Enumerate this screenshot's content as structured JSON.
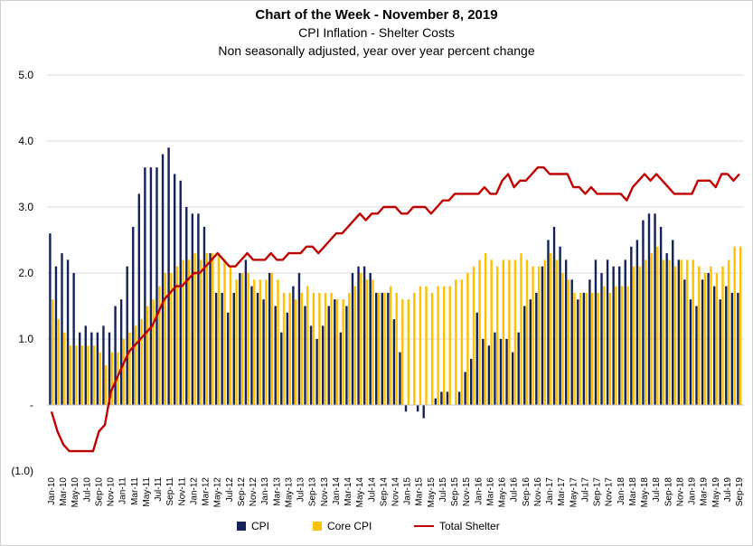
{
  "chart_data": {
    "type": "bar",
    "title": "Chart of the Week - November 8, 2019",
    "subtitle": [
      "CPI Inflation - Shelter Costs",
      "Non seasonally adjusted, year over year percent change"
    ],
    "xlabel": "",
    "ylabel": "",
    "ylim": [
      -1,
      5
    ],
    "y_ticks": [
      5,
      4,
      3,
      2,
      1,
      0,
      -1
    ],
    "y_tick_labels": [
      "5.0",
      "4.0",
      "3.0",
      "2.0",
      "1.0",
      "-",
      "(1.0)"
    ],
    "grid": true,
    "legend_position": "bottom",
    "categories": [
      "Jan-10",
      "Feb-10",
      "Mar-10",
      "Apr-10",
      "May-10",
      "Jun-10",
      "Jul-10",
      "Aug-10",
      "Sep-10",
      "Oct-10",
      "Nov-10",
      "Dec-10",
      "Jan-11",
      "Feb-11",
      "Mar-11",
      "Apr-11",
      "May-11",
      "Jun-11",
      "Jul-11",
      "Aug-11",
      "Sep-11",
      "Oct-11",
      "Nov-11",
      "Dec-11",
      "Jan-12",
      "Feb-12",
      "Mar-12",
      "Apr-12",
      "May-12",
      "Jun-12",
      "Jul-12",
      "Aug-12",
      "Sep-12",
      "Oct-12",
      "Nov-12",
      "Dec-12",
      "Jan-13",
      "Feb-13",
      "Mar-13",
      "Apr-13",
      "May-13",
      "Jun-13",
      "Jul-13",
      "Aug-13",
      "Sep-13",
      "Oct-13",
      "Nov-13",
      "Dec-13",
      "Jan-14",
      "Feb-14",
      "Mar-14",
      "Apr-14",
      "May-14",
      "Jun-14",
      "Jul-14",
      "Aug-14",
      "Sep-14",
      "Oct-14",
      "Nov-14",
      "Dec-14",
      "Jan-15",
      "Feb-15",
      "Mar-15",
      "Apr-15",
      "May-15",
      "Jun-15",
      "Jul-15",
      "Aug-15",
      "Sep-15",
      "Oct-15",
      "Nov-15",
      "Dec-15",
      "Jan-16",
      "Feb-16",
      "Mar-16",
      "Apr-16",
      "May-16",
      "Jun-16",
      "Jul-16",
      "Aug-16",
      "Sep-16",
      "Oct-16",
      "Nov-16",
      "Dec-16",
      "Jan-17",
      "Feb-17",
      "Mar-17",
      "Apr-17",
      "May-17",
      "Jun-17",
      "Jul-17",
      "Aug-17",
      "Sep-17",
      "Oct-17",
      "Nov-17",
      "Dec-17",
      "Jan-18",
      "Feb-18",
      "Mar-18",
      "Apr-18",
      "May-18",
      "Jun-18",
      "Jul-18",
      "Aug-18",
      "Sep-18",
      "Oct-18",
      "Nov-18",
      "Dec-18",
      "Jan-19",
      "Feb-19",
      "Mar-19",
      "Apr-19",
      "May-19",
      "Jun-19",
      "Jul-19",
      "Aug-19",
      "Sep-19"
    ],
    "series": [
      {
        "name": "CPI",
        "type": "bar",
        "color": "#14235a",
        "values": [
          2.6,
          2.1,
          2.3,
          2.2,
          2.0,
          1.1,
          1.2,
          1.1,
          1.1,
          1.2,
          1.1,
          1.5,
          1.6,
          2.1,
          2.7,
          3.2,
          3.6,
          3.6,
          3.6,
          3.8,
          3.9,
          3.5,
          3.4,
          3.0,
          2.9,
          2.9,
          2.7,
          2.3,
          1.7,
          1.7,
          1.4,
          1.7,
          2.0,
          2.2,
          1.8,
          1.7,
          1.6,
          2.0,
          1.5,
          1.1,
          1.4,
          1.8,
          2.0,
          1.5,
          1.2,
          1.0,
          1.2,
          1.5,
          1.6,
          1.1,
          1.5,
          2.0,
          2.1,
          2.1,
          2.0,
          1.7,
          1.7,
          1.7,
          1.3,
          0.8,
          -0.1,
          0.0,
          -0.1,
          -0.2,
          0.0,
          0.1,
          0.2,
          0.2,
          0.0,
          0.2,
          0.5,
          0.7,
          1.4,
          1.0,
          0.9,
          1.1,
          1.0,
          1.0,
          0.8,
          1.1,
          1.5,
          1.6,
          1.7,
          2.1,
          2.5,
          2.7,
          2.4,
          2.2,
          1.9,
          1.6,
          1.7,
          1.9,
          2.2,
          2.0,
          2.2,
          2.1,
          2.1,
          2.2,
          2.4,
          2.5,
          2.8,
          2.9,
          2.9,
          2.7,
          2.3,
          2.5,
          2.2,
          1.9,
          1.6,
          1.5,
          1.9,
          2.0,
          1.8,
          1.6,
          1.8,
          1.7,
          1.7
        ]
      },
      {
        "name": "Core CPI",
        "type": "bar",
        "color": "#ffc000",
        "values": [
          1.6,
          1.3,
          1.1,
          0.9,
          0.9,
          0.9,
          0.9,
          0.9,
          0.8,
          0.6,
          0.8,
          0.8,
          1.0,
          1.1,
          1.2,
          1.3,
          1.5,
          1.6,
          1.8,
          2.0,
          2.0,
          2.1,
          2.2,
          2.2,
          2.3,
          2.2,
          2.3,
          2.3,
          2.3,
          2.2,
          2.1,
          1.9,
          2.0,
          2.0,
          1.9,
          1.9,
          1.9,
          2.0,
          1.9,
          1.7,
          1.7,
          1.6,
          1.7,
          1.8,
          1.7,
          1.7,
          1.7,
          1.7,
          1.6,
          1.6,
          1.7,
          1.8,
          2.0,
          1.9,
          1.9,
          1.7,
          1.7,
          1.8,
          1.7,
          1.6,
          1.6,
          1.7,
          1.8,
          1.8,
          1.7,
          1.8,
          1.8,
          1.8,
          1.9,
          1.9,
          2.0,
          2.1,
          2.2,
          2.3,
          2.2,
          2.1,
          2.2,
          2.2,
          2.2,
          2.3,
          2.2,
          2.1,
          2.1,
          2.2,
          2.3,
          2.2,
          2.0,
          1.9,
          1.7,
          1.7,
          1.7,
          1.7,
          1.7,
          1.8,
          1.7,
          1.8,
          1.8,
          1.8,
          2.1,
          2.1,
          2.2,
          2.3,
          2.4,
          2.2,
          2.2,
          2.1,
          2.2,
          2.2,
          2.2,
          2.1,
          2.0,
          2.1,
          2.0,
          2.1,
          2.2,
          2.4,
          2.4
        ]
      },
      {
        "name": "Total Shelter",
        "type": "line",
        "color": "#c00000",
        "values": [
          -0.1,
          -0.4,
          -0.6,
          -0.7,
          -0.7,
          -0.7,
          -0.7,
          -0.7,
          -0.4,
          -0.3,
          0.2,
          0.4,
          0.6,
          0.8,
          0.9,
          1.0,
          1.1,
          1.2,
          1.4,
          1.6,
          1.7,
          1.8,
          1.8,
          1.9,
          2.0,
          2.0,
          2.1,
          2.2,
          2.3,
          2.2,
          2.1,
          2.1,
          2.2,
          2.3,
          2.2,
          2.2,
          2.2,
          2.3,
          2.2,
          2.2,
          2.3,
          2.3,
          2.3,
          2.4,
          2.4,
          2.3,
          2.4,
          2.5,
          2.6,
          2.6,
          2.7,
          2.8,
          2.9,
          2.8,
          2.9,
          2.9,
          3.0,
          3.0,
          3.0,
          2.9,
          2.9,
          3.0,
          3.0,
          3.0,
          2.9,
          3.0,
          3.1,
          3.1,
          3.2,
          3.2,
          3.2,
          3.2,
          3.2,
          3.3,
          3.2,
          3.2,
          3.4,
          3.5,
          3.3,
          3.4,
          3.4,
          3.5,
          3.6,
          3.6,
          3.5,
          3.5,
          3.5,
          3.5,
          3.3,
          3.3,
          3.2,
          3.3,
          3.2,
          3.2,
          3.2,
          3.2,
          3.2,
          3.1,
          3.3,
          3.4,
          3.5,
          3.4,
          3.5,
          3.4,
          3.3,
          3.2,
          3.2,
          3.2,
          3.2,
          3.4,
          3.4,
          3.4,
          3.3,
          3.5,
          3.5,
          3.4,
          3.5
        ]
      }
    ]
  }
}
